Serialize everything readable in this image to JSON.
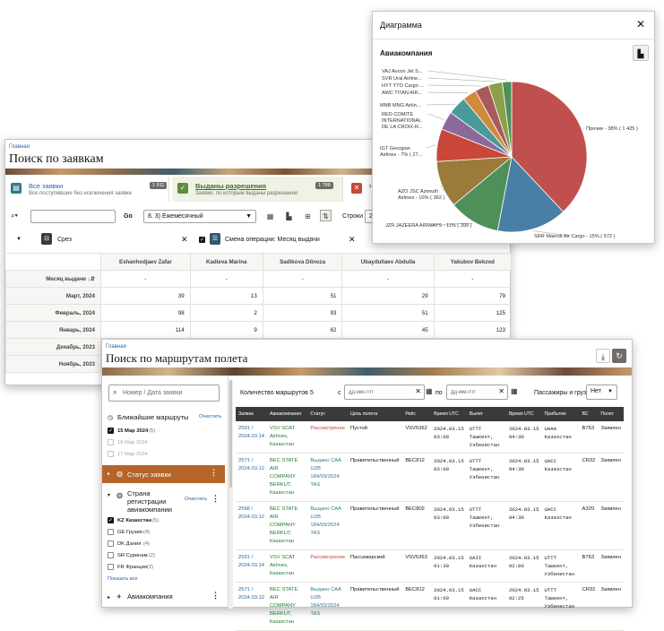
{
  "requests_window": {
    "breadcrumb": "Главная",
    "title": "Поиск по заявкам",
    "cards": [
      {
        "label": "Все заявки",
        "desc": "Все поступившие без исключения заявки",
        "count": "1 911",
        "color": "#2e7a8a"
      },
      {
        "label": "Выданы разрешения",
        "desc": "Заявки, по которым выданы разрешения",
        "count": "1 788",
        "color": "#5f8c3a"
      },
      {
        "label": "Не",
        "desc": "",
        "count": "",
        "color": "#c74634"
      }
    ],
    "toolbar": {
      "go": "Go",
      "report": "8. 3) Ежемесячный",
      "rows_label": "Строки",
      "rows_value": "25"
    },
    "filters": [
      {
        "label": "Срез"
      },
      {
        "label": "Смена операции: Месяц выдачи"
      }
    ],
    "grid": {
      "row_header": "Месяц выдачи",
      "columns": [
        "Eshanhodjaev Zafar",
        "Kadieva Marina",
        "Sadikova Dilnoza",
        "Ubaydullaev Abdulla",
        "Yakubov Bekzod"
      ],
      "rows": [
        {
          "label": "-",
          "values": [
            "-",
            "-",
            "-",
            "-",
            "-"
          ]
        },
        {
          "label": "Март, 2024",
          "values": [
            "39",
            "13",
            "51",
            "29",
            "79"
          ]
        },
        {
          "label": "Февраль, 2024",
          "values": [
            "98",
            "2",
            "93",
            "51",
            "125"
          ]
        },
        {
          "label": "Январь, 2024",
          "values": [
            "114",
            "9",
            "62",
            "45",
            "123"
          ]
        },
        {
          "label": "Декабрь, 2023",
          "values": [
            "",
            "",
            "",
            "",
            ""
          ]
        },
        {
          "label": "Ноябрь, 2023",
          "values": [
            "",
            "",
            "",
            "",
            ""
          ]
        }
      ]
    }
  },
  "chart_window": {
    "title": "Диаграмма",
    "subtitle": "Авиакомпания",
    "close": "✕",
    "chart_icon": "bar-chart-icon"
  },
  "chart_data": {
    "type": "pie",
    "title": "Авиакомпания",
    "slices": [
      {
        "label": "Прочие - 38% ( 1 425 )",
        "value": 38,
        "color": "#c0504d"
      },
      {
        "label": "SRR Maersk Air Cargo - 15% ( 572 )",
        "value": 15,
        "color": "#4a7fa5"
      },
      {
        "label": "JZR JAZEERA AIRWAYS - 11% ( 399 )",
        "value": 11,
        "color": "#4f8f5a"
      },
      {
        "label": "AZO JSC Azimuth Airlines - 10% ( 362 )",
        "value": 10,
        "color": "#9a7b3a"
      },
      {
        "label": "IGT Georgian Airlines - 7% ( 27...",
        "value": 7,
        "color": "#c9473a"
      },
      {
        "label": "RED COMITE INTERNATIONAL DE LA CROIX-R...",
        "value": 4,
        "color": "#8a6a9a"
      },
      {
        "label": "MNB MNG Airlin...",
        "value": 4,
        "color": "#4a9a9a"
      },
      {
        "label": "AWC TITAN AIR...",
        "value": 3,
        "color": "#d08a3a"
      },
      {
        "label": "HYT YTO Cargo ...",
        "value": 3,
        "color": "#a85a5a"
      },
      {
        "label": "SVR Ural Airline...",
        "value": 3,
        "color": "#8aa04a"
      },
      {
        "label": "VAJ Avcon Jet S...",
        "value": 2,
        "color": "#4f8f5a"
      }
    ]
  },
  "routes_window": {
    "breadcrumb": "Главная",
    "title": "Поиск по маршрутам полета",
    "search_placeholder": "Номер / Дата заявки",
    "filters": {
      "nearest": {
        "title": "Ближайшие маршруты",
        "clear": "Очистить",
        "items": [
          {
            "label": "15 Мар 2024",
            "count": "(5)",
            "checked": true
          },
          {
            "label": "16 Мар 2024",
            "count": "",
            "checked": false
          },
          {
            "label": "17 Мар 2024",
            "count": "",
            "checked": false
          }
        ]
      },
      "status": {
        "title": "Статус заявки"
      },
      "country": {
        "title1": "Страна",
        "title2": "регистрации",
        "title3": "авиакомпании",
        "clear": "Очистить",
        "items": [
          {
            "label": "KZ Казахстан",
            "count": "(5)",
            "checked": true
          },
          {
            "label": "GE Грузия",
            "count": "(4)",
            "checked": false
          },
          {
            "label": "DK Дания",
            "count": "(4)",
            "checked": false
          },
          {
            "label": "SR Суринам",
            "count": "(2)",
            "checked": false
          },
          {
            "label": "FR Франция",
            "count": "(2)",
            "checked": false
          }
        ],
        "show_all": "Показать все"
      },
      "airline": {
        "title": "Авиакомпания"
      }
    },
    "toolbar": {
      "count_label": "Количество маршрутов",
      "count": "5",
      "from": "с",
      "to": "по",
      "date_placeholder": "дд-мм-гггг",
      "pax_label": "Пассажиры и груз",
      "pax_value": "Нет"
    },
    "columns": [
      "Заявка",
      "Авиакомпания",
      "Статус",
      "Цель полета",
      "Рейс",
      "Время UTC",
      "Вылет",
      "Время UTC",
      "Прибытие",
      "ВС",
      "Полет"
    ],
    "rows": [
      {
        "req": "2591 / 2024.03.14",
        "airline": "VSV SCAT Airlines, Казахстан",
        "status": "Рассмотрение",
        "status_type": "red",
        "purpose": "Пустой",
        "flight": "VSV5362",
        "dep_time": "2024.03.15 03:00",
        "dep": "UTTT Ташкент, Узбекистан",
        "arr_time": "2024.03.15 04:30",
        "arr": "UAAA Казахстан",
        "ac": "B763",
        "fl": "Заявлен"
      },
      {
        "req": "2571 / 2024.03.12",
        "airline": "BEC STATE AIR COMPANY BERKUT, Казахстан",
        "status": "Выдано САА UZB 184/03/2024 TAS",
        "status_type": "teal",
        "purpose": "Правительственный",
        "flight": "BEC812",
        "dep_time": "2024.03.15 03:00",
        "dep": "UTTT Ташкент, Узбекистан",
        "arr_time": "2024.03.15 04:30",
        "arr": "UACC Казахстан",
        "ac": "CR32",
        "fl": "Заявлен"
      },
      {
        "req": "2568 / 2024.03.12",
        "airline": "BEC STATE AIR COMPANY BERKUT, Казахстан",
        "status": "Выдано САА UZB 184/03/2024 TAS",
        "status_type": "teal",
        "purpose": "Правительственный",
        "flight": "BEC802",
        "dep_time": "2024.03.15 03:00",
        "dep": "UTTT Ташкент, Узбекистан",
        "arr_time": "2024.03.15 04:30",
        "arr": "UACC Казахстан",
        "ac": "A320",
        "fl": "Заявлен"
      },
      {
        "req": "2591 / 2024.03.14",
        "airline": "VSV SCAT Airlines, Казахстан",
        "status": "Рассмотрение",
        "status_type": "red",
        "purpose": "Пассажирский",
        "flight": "VSV5363",
        "dep_time": "2024.03.15 01:30",
        "dep": "UAII Казахстан",
        "arr_time": "2024.03.15 02:00",
        "arr": "UTTT Ташкент, Узбекистан",
        "ac": "B763",
        "fl": "Заявлен"
      },
      {
        "req": "2571 / 2024.03.12",
        "airline": "BEC STATE AIR COMPANY BERKUT, Казахстан",
        "status": "Выдано САА UZB 184/03/2024 TAS",
        "status_type": "teal",
        "purpose": "Правительственный",
        "flight": "BEC812",
        "dep_time": "2024.03.15 01:00",
        "dep": "UACC Казахстан",
        "arr_time": "2024.03.15 02:25",
        "arr": "UTTT Ташкент, Узбекистан",
        "ac": "CR32",
        "fl": "Заявлен"
      }
    ]
  }
}
